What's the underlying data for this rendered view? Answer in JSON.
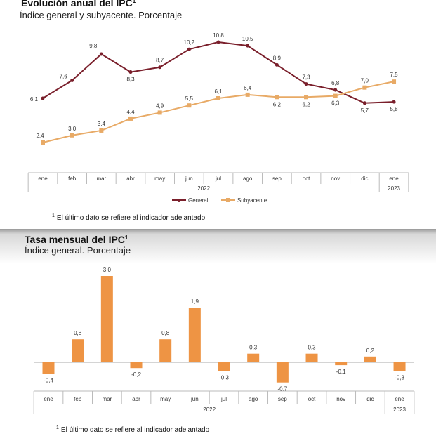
{
  "chart_data": [
    {
      "type": "line",
      "title": "Evolución anual del IPC",
      "title_sup": "1",
      "subtitle": "Índice general y subyacente. Porcentaje",
      "categories": [
        "ene",
        "feb",
        "mar",
        "abr",
        "may",
        "jun",
        "jul",
        "ago",
        "sep",
        "oct",
        "nov",
        "dic",
        "ene"
      ],
      "year_labels": [
        "2022",
        "2023"
      ],
      "series": [
        {
          "name": "General",
          "color": "#7a1f2b",
          "values": [
            6.1,
            7.6,
            9.8,
            8.3,
            8.7,
            10.2,
            10.8,
            10.5,
            8.9,
            7.3,
            6.8,
            5.7,
            5.8
          ],
          "labels": [
            "6,1",
            "7,6",
            "9,8",
            "8,3",
            "8,7",
            "10,2",
            "10,8",
            "10,5",
            "8,9",
            "7,3",
            "6,8",
            "5,7",
            "5,8"
          ]
        },
        {
          "name": "Subyacente",
          "color": "#e8aa66",
          "values": [
            2.4,
            3.0,
            3.4,
            4.4,
            4.9,
            5.5,
            6.1,
            6.4,
            6.2,
            6.2,
            6.3,
            7.0,
            7.5
          ],
          "labels": [
            "2,4",
            "3,0",
            "3,4",
            "4,4",
            "4,9",
            "5,5",
            "6,1",
            "6,4",
            "6,2",
            "6,2",
            "6,3",
            "7,0",
            "7,5"
          ]
        }
      ],
      "legend": "bottom",
      "grid": false,
      "footnote_sup": "1",
      "footnote": "El último dato se refiere al indicador adelantado"
    },
    {
      "type": "bar",
      "title": "Tasa mensual del IPC",
      "title_sup": "1",
      "subtitle": "Índice general. Porcentaje",
      "categories": [
        "ene",
        "feb",
        "mar",
        "abr",
        "may",
        "jun",
        "jul",
        "ago",
        "sep",
        "oct",
        "nov",
        "dic",
        "ene"
      ],
      "year_labels": [
        "2022",
        "2023"
      ],
      "values": [
        -0.4,
        0.8,
        3.0,
        -0.2,
        0.8,
        1.9,
        -0.3,
        0.3,
        -0.7,
        0.3,
        -0.1,
        0.2,
        -0.3
      ],
      "labels": [
        "-0,4",
        "0,8",
        "3,0",
        "-0,2",
        "0,8",
        "1,9",
        "-0,3",
        "0,3",
        "-0,7",
        "0,3",
        "-0,1",
        "0,2",
        "-0,3"
      ],
      "color": "#ee9444",
      "grid": false,
      "footnote_sup": "1",
      "footnote": "El último dato se refiere al indicador adelantado"
    }
  ]
}
